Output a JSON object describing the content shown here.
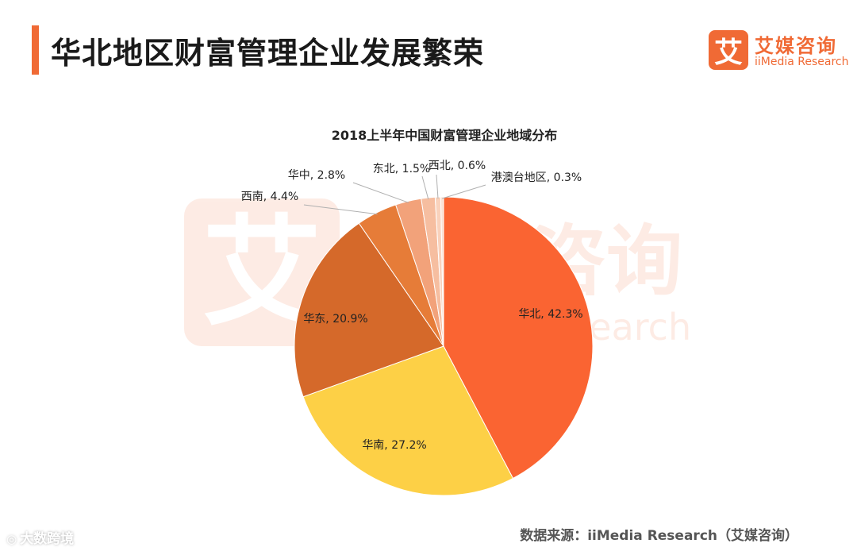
{
  "header": {
    "title": "华北地区财富管理企业发展繁荣",
    "accent_color": "#f06a35"
  },
  "brand": {
    "mark": "艾",
    "name_cn": "艾媒咨询",
    "name_en": "iiMedia Research"
  },
  "watermark": {
    "mark": "艾",
    "text_cn": "咨询",
    "text_en": "esearch"
  },
  "chart_data": {
    "type": "pie",
    "title": "2018上半年中国财富管理企业地域分布",
    "slices": [
      {
        "label": "华北",
        "value": 42.3,
        "value_text": "42.3%",
        "display": "华北, 42.3%",
        "color": "#fa6432"
      },
      {
        "label": "华南",
        "value": 27.2,
        "value_text": "27.2%",
        "display": "华南, 27.2%",
        "color": "#fdd046"
      },
      {
        "label": "华东",
        "value": 20.9,
        "value_text": "20.9%",
        "display": "华东, 20.9%",
        "color": "#d5692a"
      },
      {
        "label": "西南",
        "value": 4.4,
        "value_text": "4.4%",
        "display": "西南, 4.4%",
        "color": "#e67c38"
      },
      {
        "label": "华中",
        "value": 2.8,
        "value_text": "2.8%",
        "display": "华中, 2.8%",
        "color": "#f2a27a"
      },
      {
        "label": "东北",
        "value": 1.5,
        "value_text": "1.5%",
        "display": "东北, 1.5%",
        "color": "#f6bea0"
      },
      {
        "label": "西北",
        "value": 0.6,
        "value_text": "0.6%",
        "display": "西北, 0.6%",
        "color": "#f9d2bc"
      },
      {
        "label": "港澳台地区",
        "value": 0.3,
        "value_text": "0.3%",
        "display": "港澳台地区, 0.3%",
        "color": "#fbe0d2"
      }
    ],
    "start_angle": "12 o'clock",
    "direction": "clockwise",
    "legend": "none"
  },
  "footer": {
    "source": "数据来源：iiMedia Research（艾媒咨询）",
    "platform": "大数跨境",
    "platform_icon": "chat-bubble-icon"
  }
}
